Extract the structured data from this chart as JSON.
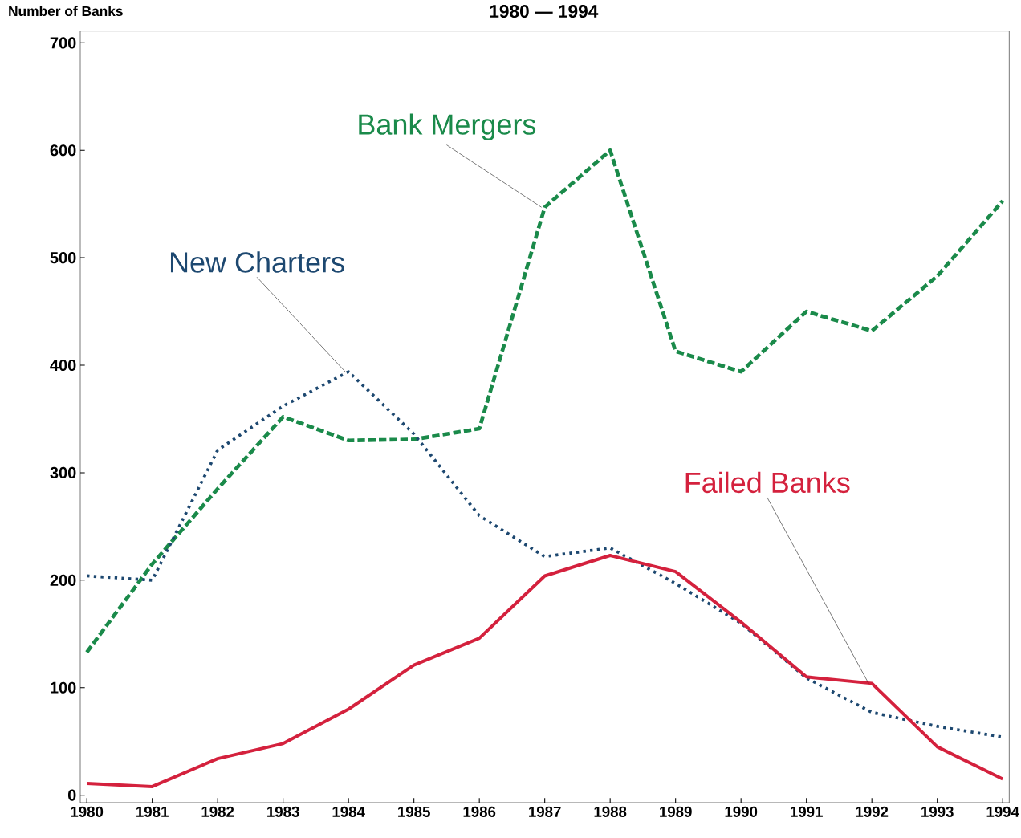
{
  "chart_data": {
    "type": "line",
    "title": "1980 — 1994",
    "ylabel": "Number of Banks",
    "x": [
      1980,
      1981,
      1982,
      1983,
      1984,
      1985,
      1986,
      1987,
      1988,
      1989,
      1990,
      1991,
      1992,
      1993,
      1994
    ],
    "xlim": [
      1979.9,
      1994.1
    ],
    "xticks": [
      1980,
      1981,
      1982,
      1983,
      1984,
      1985,
      1986,
      1987,
      1988,
      1989,
      1990,
      1991,
      1992,
      1993,
      1994
    ],
    "ylim": [
      -7,
      711
    ],
    "yticks": [
      0,
      100,
      200,
      300,
      400,
      500,
      600,
      700
    ],
    "grid": false,
    "legend": false,
    "marker": "none",
    "series": [
      {
        "name": "Bank Mergers",
        "color": "#1a8a4a",
        "line_style": "dashed",
        "values": [
          133,
          215,
          285,
          352,
          330,
          331,
          341,
          547,
          600,
          413,
          394,
          450,
          432,
          483,
          553
        ]
      },
      {
        "name": "New Charters",
        "color": "#1d4870",
        "line_style": "dotted",
        "values": [
          204,
          200,
          321,
          362,
          394,
          336,
          260,
          222,
          230,
          197,
          160,
          109,
          77,
          64,
          54
        ]
      },
      {
        "name": "Failed Banks",
        "color": "#d4213d",
        "line_style": "solid",
        "values": [
          11,
          8,
          34,
          48,
          80,
          121,
          146,
          204,
          223,
          208,
          161,
          110,
          104,
          45,
          15
        ]
      }
    ]
  }
}
